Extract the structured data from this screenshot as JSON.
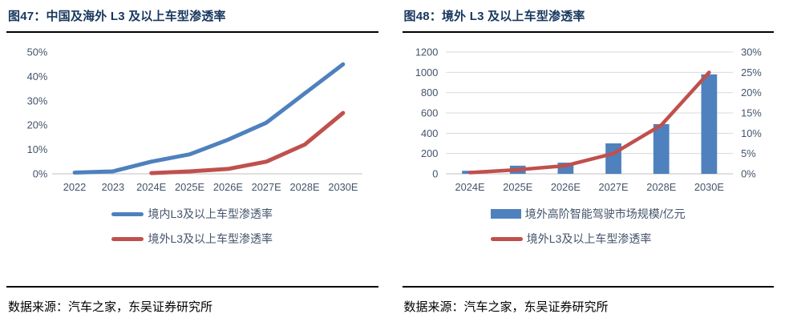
{
  "colors": {
    "title": "#17375E",
    "series_blue": "#4E81BD",
    "series_red": "#C0504D",
    "axis_label": "#44546A",
    "gridline": "#D9D9D9",
    "axis_line": "#BFBFBF",
    "divider": "#000000"
  },
  "left_panel": {
    "title": "图47：中国及海外 L3 及以上车型渗透率",
    "source": "数据来源：汽车之家，东吴证券研究所",
    "legend": [
      {
        "label": "境内L3及以上车型渗透率",
        "marker": "line",
        "color": "#4E81BD"
      },
      {
        "label": "境外L3及以上车型渗透率",
        "marker": "line",
        "color": "#C0504D"
      }
    ]
  },
  "right_panel": {
    "title": "图48：境外 L3 及以上车型渗透率",
    "source": "数据来源：汽车之家，东吴证券研究所",
    "legend": [
      {
        "label": "境外高阶智能驾驶市场规模/亿元",
        "marker": "rect",
        "color": "#4E81BD"
      },
      {
        "label": "境外L3及以上车型渗透率",
        "marker": "line",
        "color": "#C0504D"
      }
    ]
  },
  "chart_data": [
    {
      "type": "line",
      "title": "图47：中国及海外 L3 及以上车型渗透率",
      "categories": [
        "2022",
        "2023",
        "2024E",
        "2025E",
        "2026E",
        "2027E",
        "2028E",
        "2030E"
      ],
      "series": [
        {
          "name": "境内L3及以上车型渗透率",
          "color": "#4E81BD",
          "values": [
            0.5,
            1,
            5,
            8,
            14,
            21,
            33,
            45
          ]
        },
        {
          "name": "境外L3及以上车型渗透率",
          "color": "#C0504D",
          "values": [
            null,
            null,
            0.3,
            1,
            2,
            5,
            12,
            25
          ]
        }
      ],
      "ylim": [
        0,
        50
      ],
      "ytick_labels": [
        "0%",
        "10%",
        "20%",
        "30%",
        "40%",
        "50%"
      ],
      "ytick_values": [
        0,
        10,
        20,
        30,
        40,
        50
      ],
      "grid": false,
      "legend_position": "bottom"
    },
    {
      "type": "bar+line",
      "title": "图48：境外 L3 及以上车型渗透率",
      "categories": [
        "2024E",
        "2025E",
        "2026E",
        "2027E",
        "2028E",
        "2030E"
      ],
      "bar_series": {
        "name": "境外高阶智能驾驶市场规模/亿元",
        "color": "#4E81BD",
        "axis": "left",
        "values": [
          30,
          80,
          110,
          300,
          490,
          980
        ]
      },
      "line_series": {
        "name": "境外L3及以上车型渗透率",
        "color": "#C0504D",
        "axis": "right",
        "values": [
          0.3,
          1,
          2,
          5,
          12,
          25
        ]
      },
      "left_ylim": [
        0,
        1200
      ],
      "left_ytick_labels": [
        "0",
        "200",
        "400",
        "600",
        "800",
        "1000",
        "1200"
      ],
      "left_ytick_values": [
        0,
        200,
        400,
        600,
        800,
        1000,
        1200
      ],
      "right_ylim": [
        0,
        30
      ],
      "right_ytick_labels": [
        "0%",
        "5%",
        "10%",
        "15%",
        "20%",
        "25%",
        "30%"
      ],
      "right_ytick_values": [
        0,
        5,
        10,
        15,
        20,
        25,
        30
      ],
      "grid": true,
      "legend_position": "bottom"
    }
  ]
}
